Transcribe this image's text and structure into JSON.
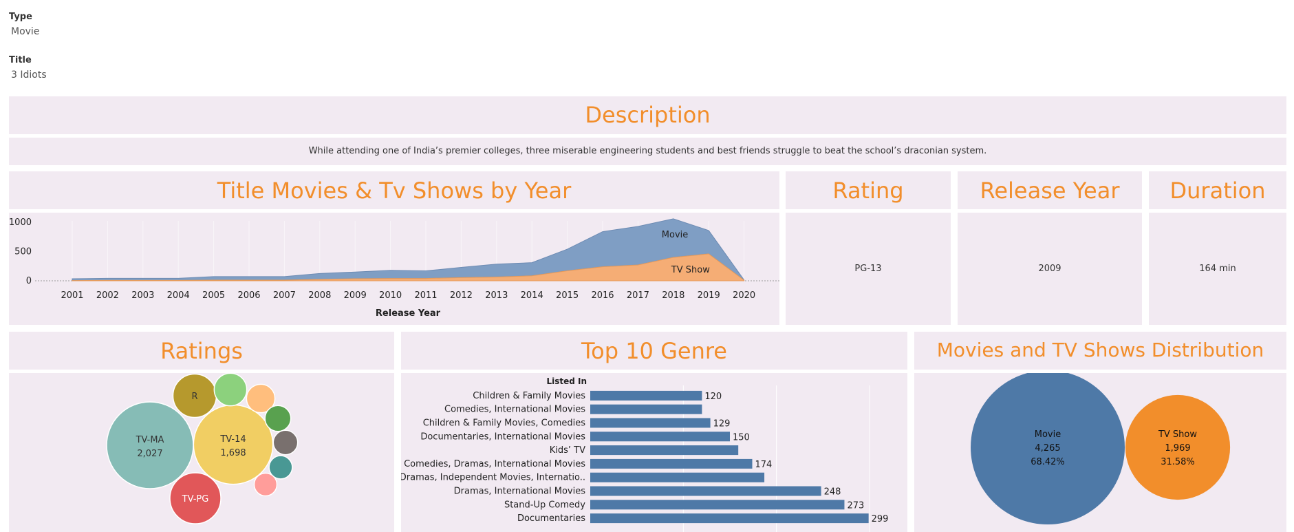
{
  "filters": {
    "type": {
      "label": "Type",
      "value": "Movie"
    },
    "title": {
      "label": "Title",
      "value": "3 Idiots"
    }
  },
  "description": {
    "title": "Description",
    "text": "While attending one of India’s premier colleges, three miserable engineering students and best friends struggle to beat the school’s draconian system."
  },
  "by_year": {
    "title": "Title Movies & Tv Shows by Year"
  },
  "rating": {
    "title": "Rating",
    "value": "PG-13"
  },
  "release_year": {
    "title": "Release Year",
    "value": "2009"
  },
  "duration": {
    "title": "Duration",
    "value": "164 min"
  },
  "ratings_panel": {
    "title": "Ratings"
  },
  "genre_panel": {
    "title": "Top 10 Genre"
  },
  "distribution_panel": {
    "title": "Movies and TV Shows Distribution"
  },
  "colors": {
    "accent": "#f28e2b",
    "panel": "#f2eaf2",
    "movie": "#4e79a7",
    "tvshow": "#f28e2b"
  },
  "chart_data": [
    {
      "type": "area",
      "title": "Title Movies & Tv Shows by Year",
      "xlabel": "Release Year",
      "ylabel": "",
      "x": [
        2001,
        2002,
        2003,
        2004,
        2005,
        2006,
        2007,
        2008,
        2009,
        2010,
        2011,
        2012,
        2013,
        2014,
        2015,
        2016,
        2017,
        2018,
        2019,
        2020
      ],
      "ylim": [
        0,
        1000
      ],
      "yticks": [
        0,
        500,
        1000
      ],
      "stacked": true,
      "series": [
        {
          "name": "TV Show",
          "values": [
            5,
            8,
            8,
            8,
            12,
            12,
            12,
            25,
            35,
            40,
            40,
            55,
            65,
            85,
            170,
            240,
            270,
            400,
            460,
            10
          ]
        },
        {
          "name": "Movie",
          "values": [
            30,
            35,
            35,
            35,
            60,
            60,
            60,
            100,
            115,
            140,
            130,
            175,
            220,
            225,
            370,
            600,
            660,
            660,
            400,
            5
          ]
        }
      ]
    },
    {
      "type": "bubble",
      "title": "Ratings",
      "items": [
        {
          "label": "TV-MA",
          "value": 2027,
          "value_label": "2,027",
          "color": "#86bcb6"
        },
        {
          "label": "TV-14",
          "value": 1698,
          "value_label": "1,698",
          "color": "#f1ce63"
        },
        {
          "label": "TV-PG",
          "value": 700,
          "color": "#e15759"
        },
        {
          "label": "R",
          "value": 508,
          "color": "#b6992d"
        },
        {
          "label": "",
          "value": 286,
          "color": "#8cd17d"
        },
        {
          "label": "",
          "value": 218,
          "color": "#ffbe7d"
        },
        {
          "label": "",
          "value": 180,
          "color": "#59a14f"
        },
        {
          "label": "",
          "value": 160,
          "color": "#79706e"
        },
        {
          "label": "",
          "value": 145,
          "color": "#499894"
        },
        {
          "label": "",
          "value": 139,
          "color": "#ff9d9a"
        }
      ]
    },
    {
      "type": "bar",
      "title": "Top 10 Genre",
      "ylabel": "Listed In",
      "categories": [
        "Children & Family Movies",
        "Comedies, International Movies",
        "Children & Family Movies, Comedies",
        "Documentaries, International Movies",
        "Kids’ TV",
        "Comedies, Dramas, International Movies",
        "Dramas, Independent Movies, Internatio..",
        "Dramas, International Movies",
        "Stand-Up Comedy",
        "Documentaries"
      ],
      "values": [
        120,
        120,
        129,
        150,
        159,
        174,
        187,
        248,
        273,
        299
      ],
      "data_labels": [
        "120",
        "",
        "129",
        "150",
        "",
        "174",
        "",
        "248",
        "273",
        "299"
      ],
      "xlim": [
        0,
        320
      ],
      "color": "#4e79a7"
    },
    {
      "type": "bubble",
      "title": "Movies and TV Shows Distribution",
      "items": [
        {
          "label": "Movie",
          "value": 4265,
          "value_label": "4,265",
          "pct": "68.42%",
          "color": "#4e79a7"
        },
        {
          "label": "TV Show",
          "value": 1969,
          "value_label": "1,969",
          "pct": "31.58%",
          "color": "#f28e2b"
        }
      ]
    }
  ]
}
